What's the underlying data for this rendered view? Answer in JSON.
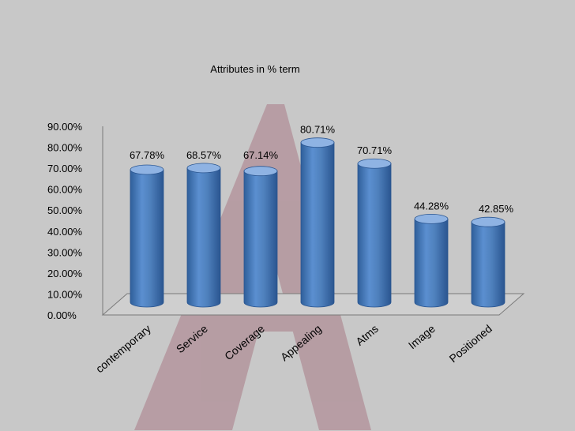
{
  "chart_data": {
    "type": "bar",
    "title": "Attributes in % term",
    "categories": [
      "contemporary",
      "Service",
      "Coverage",
      "Appealing",
      "Atms",
      "Image",
      "Positioned"
    ],
    "series": [
      {
        "values": [
          67.78,
          68.57,
          67.14,
          80.71,
          70.71,
          44.28,
          42.85
        ]
      }
    ],
    "data_labels": [
      "67.78%",
      "68.57%",
      "67.14%",
      "80.71%",
      "70.71%",
      "44.28%",
      "42.85%"
    ],
    "y_ticks": [
      "0.00%",
      "10.00%",
      "20.00%",
      "30.00%",
      "40.00%",
      "50.00%",
      "60.00%",
      "70.00%",
      "80.00%",
      "90.00%"
    ],
    "ylim": [
      0,
      90
    ],
    "xlabel": "",
    "ylabel": "",
    "grid": false,
    "legend": "none",
    "bar_style": "3d-cylinder",
    "colors": {
      "bar": "#4f81bd",
      "bar_dark": "#2f5f9a",
      "bar_top": "#8fb3e3",
      "background": "#c8c8c8",
      "watermark": "#a97a86"
    }
  }
}
